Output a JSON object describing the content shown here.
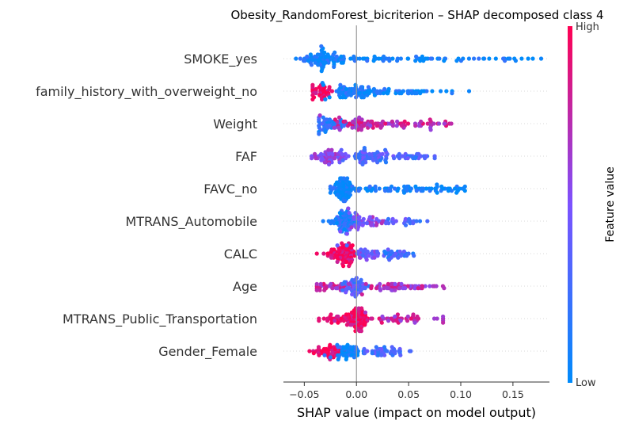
{
  "chart_data": {
    "type": "scatter",
    "subtype": "shap-beeswarm",
    "title": "Obesity_RandomForest_bicriterion – SHAP decomposed class 4",
    "xlabel": "SHAP value (impact on model output)",
    "ylabel": "",
    "xlim": [
      -0.07,
      0.185
    ],
    "xticks": [
      -0.05,
      0.0,
      0.05,
      0.1,
      0.15
    ],
    "xtick_labels": [
      "−0.05",
      "0.00",
      "0.05",
      "0.10",
      "0.15"
    ],
    "zero_line": 0.0,
    "grid": false,
    "colorbar": {
      "label": "Feature value",
      "high_label": "High",
      "low_label": "Low",
      "low_color": "#008bfb",
      "mid_color": "#7c52ff",
      "high_color": "#ff0052"
    },
    "features": [
      {
        "name": "SMOKE_yes",
        "min": -0.058,
        "max": 0.177,
        "count": 150,
        "clusters": [
          {
            "center": -0.03,
            "spread": 0.012,
            "weight": 0.55,
            "color": 0.05
          },
          {
            "center": 0.03,
            "spread": 0.035,
            "weight": 0.3,
            "color": 0.05
          },
          {
            "center": 0.13,
            "spread": 0.03,
            "weight": 0.15,
            "color": 0.05
          }
        ]
      },
      {
        "name": "family_history_with_overweight_no",
        "min": -0.042,
        "max": 0.108,
        "count": 150,
        "clusters": [
          {
            "center": -0.034,
            "spread": 0.007,
            "weight": 0.25,
            "color": 0.97
          },
          {
            "center": 0.0,
            "spread": 0.015,
            "weight": 0.5,
            "color": 0.08
          },
          {
            "center": 0.05,
            "spread": 0.025,
            "weight": 0.25,
            "color": 0.05
          }
        ]
      },
      {
        "name": "Weight",
        "min": -0.036,
        "max": 0.091,
        "count": 150,
        "clusters": [
          {
            "center": -0.022,
            "spread": 0.01,
            "weight": 0.35,
            "color": 0.2
          },
          {
            "center": 0.005,
            "spread": 0.012,
            "weight": 0.35,
            "color": 0.75
          },
          {
            "center": 0.05,
            "spread": 0.02,
            "weight": 0.3,
            "color": 0.75
          }
        ]
      },
      {
        "name": "FAF",
        "min": -0.043,
        "max": 0.075,
        "count": 150,
        "clusters": [
          {
            "center": -0.025,
            "spread": 0.009,
            "weight": 0.4,
            "color": 0.55
          },
          {
            "center": 0.01,
            "spread": 0.012,
            "weight": 0.4,
            "color": 0.35
          },
          {
            "center": 0.05,
            "spread": 0.012,
            "weight": 0.2,
            "color": 0.3
          }
        ]
      },
      {
        "name": "FAVC_no",
        "min": -0.025,
        "max": 0.104,
        "count": 150,
        "clusters": [
          {
            "center": -0.012,
            "spread": 0.006,
            "weight": 0.5,
            "color": 0.05
          },
          {
            "center": 0.03,
            "spread": 0.025,
            "weight": 0.35,
            "color": 0.05
          },
          {
            "center": 0.08,
            "spread": 0.013,
            "weight": 0.15,
            "color": 0.05
          }
        ]
      },
      {
        "name": "MTRANS_Automobile",
        "min": -0.032,
        "max": 0.068,
        "count": 140,
        "clusters": [
          {
            "center": -0.012,
            "spread": 0.007,
            "weight": 0.55,
            "color": 0.1
          },
          {
            "center": 0.01,
            "spread": 0.012,
            "weight": 0.3,
            "color": 0.55
          },
          {
            "center": 0.045,
            "spread": 0.012,
            "weight": 0.15,
            "color": 0.3
          }
        ]
      },
      {
        "name": "CALC",
        "min": -0.038,
        "max": 0.055,
        "count": 150,
        "clusters": [
          {
            "center": -0.014,
            "spread": 0.007,
            "weight": 0.55,
            "color": 0.95
          },
          {
            "center": 0.01,
            "spread": 0.01,
            "weight": 0.25,
            "color": 0.45
          },
          {
            "center": 0.035,
            "spread": 0.01,
            "weight": 0.2,
            "color": 0.25
          }
        ]
      },
      {
        "name": "Age",
        "min": -0.038,
        "max": 0.084,
        "count": 150,
        "clusters": [
          {
            "center": -0.022,
            "spread": 0.01,
            "weight": 0.25,
            "color": 0.75
          },
          {
            "center": 0.0,
            "spread": 0.006,
            "weight": 0.35,
            "color": 0.3
          },
          {
            "center": 0.04,
            "spread": 0.02,
            "weight": 0.4,
            "color": 0.7
          }
        ]
      },
      {
        "name": "MTRANS_Public_Transportation",
        "min": -0.036,
        "max": 0.083,
        "count": 150,
        "clusters": [
          {
            "center": -0.015,
            "spread": 0.01,
            "weight": 0.3,
            "color": 0.9
          },
          {
            "center": 0.002,
            "spread": 0.004,
            "weight": 0.4,
            "color": 0.95
          },
          {
            "center": 0.045,
            "spread": 0.018,
            "weight": 0.3,
            "color": 0.75
          }
        ]
      },
      {
        "name": "Gender_Female",
        "min": -0.045,
        "max": 0.052,
        "count": 140,
        "clusters": [
          {
            "center": -0.025,
            "spread": 0.008,
            "weight": 0.35,
            "color": 0.95
          },
          {
            "center": -0.008,
            "spread": 0.006,
            "weight": 0.35,
            "color": 0.1
          },
          {
            "center": 0.025,
            "spread": 0.01,
            "weight": 0.3,
            "color": 0.3
          }
        ]
      }
    ]
  }
}
